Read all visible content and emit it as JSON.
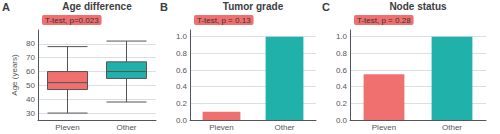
{
  "chart_data": [
    {
      "type": "boxplot",
      "title": "Age difference",
      "panel_label": "A",
      "ylabel": "Age (years)",
      "annotation": {
        "text": "T-test, p=0.023",
        "color": "#F07070"
      },
      "categories": [
        "Pleven",
        "Other"
      ],
      "values": [
        {
          "whisker_low": 30,
          "q1": 47,
          "median": 52,
          "q3": 60,
          "whisker_high": 78
        },
        {
          "whisker_low": 38,
          "q1": 55,
          "median": 60,
          "q3": 67,
          "whisker_high": 82
        }
      ],
      "colors": [
        "#F07070",
        "#20B2AA"
      ],
      "ylim": [
        25,
        90
      ],
      "yticks": [
        30,
        40,
        50,
        60,
        70,
        80
      ],
      "grid": true
    },
    {
      "type": "bar",
      "title": "Tumor grade",
      "panel_label": "B",
      "annotation": {
        "text": "T-test, p = 0.13",
        "color": "#F07070"
      },
      "categories": [
        "Pleven",
        "Other"
      ],
      "values": [
        0.1,
        1.0
      ],
      "colors": [
        "#F07070",
        "#20B2AA"
      ],
      "ylim": [
        0,
        1.08
      ],
      "yticks": [
        {
          "value": 0,
          "label": "0.0"
        },
        0.2,
        0.4,
        0.6,
        0.8,
        {
          "value": 1,
          "label": "1.0"
        }
      ],
      "grid": true
    },
    {
      "type": "bar",
      "title": "Node status",
      "panel_label": "C",
      "annotation": {
        "text": "T-test, p = 0.28",
        "color": "#F07070"
      },
      "categories": [
        "Pleven",
        "Other"
      ],
      "values": [
        0.55,
        1.0
      ],
      "colors": [
        "#F07070",
        "#20B2AA"
      ],
      "ylim": [
        0,
        1.08
      ],
      "yticks": [
        {
          "value": 0,
          "label": "0.0"
        },
        0.2,
        0.4,
        0.6,
        0.8,
        {
          "value": 1,
          "label": "1.0"
        }
      ],
      "grid": true
    }
  ]
}
